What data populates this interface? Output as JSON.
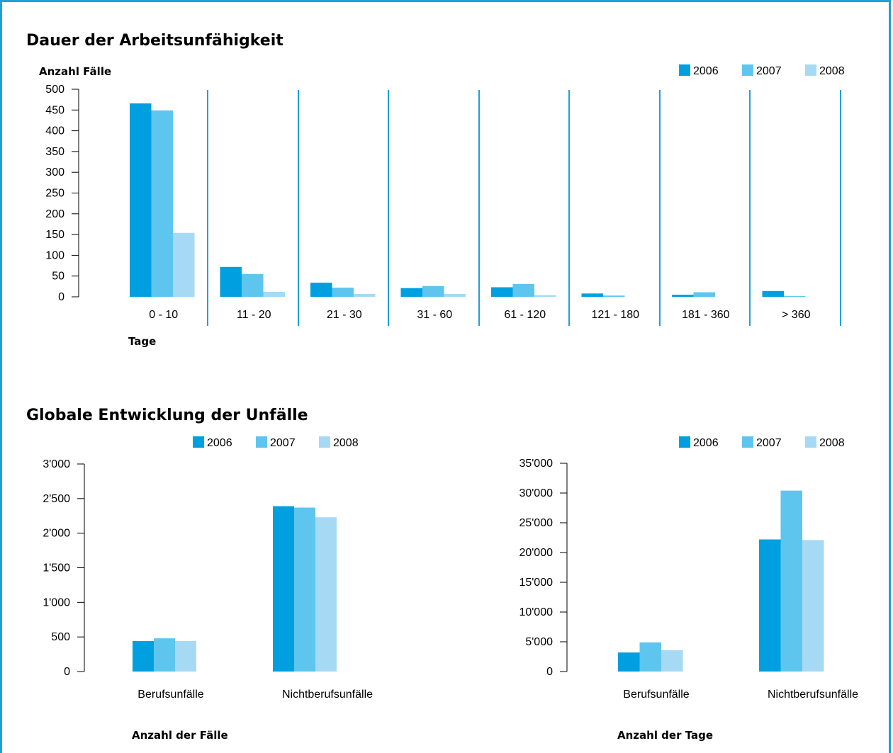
{
  "colors": {
    "frame": "#1ea1d9",
    "s2006": "#009fe0",
    "s2007": "#5ec6ee",
    "s2008": "#a6daf4",
    "separator": "#1ea1d9",
    "axis": "#000000"
  },
  "sections": {
    "duration_title": "Dauer der Arbeitsunfähigkeit",
    "global_title": "Globale Entwicklung der Unfälle"
  },
  "chart_data": [
    {
      "type": "bar",
      "ylabel": "Anzahl Fälle",
      "xlabel": "Tage",
      "categories": [
        "0 - 10",
        "11 - 20",
        "21 - 30",
        "31 - 60",
        "61 - 120",
        "121 - 180",
        "181 - 360",
        "> 360"
      ],
      "series": [
        {
          "name": "2006",
          "values": [
            466,
            72,
            34,
            21,
            23,
            8,
            5,
            14
          ]
        },
        {
          "name": "2007",
          "values": [
            449,
            55,
            22,
            26,
            31,
            3,
            11,
            2
          ]
        },
        {
          "name": "2008",
          "values": [
            154,
            12,
            7,
            7,
            4,
            0,
            0,
            0
          ]
        }
      ],
      "ylim": [
        0,
        500
      ],
      "yticks": [
        "0",
        "50",
        "100",
        "150",
        "200",
        "250",
        "300",
        "350",
        "400",
        "450",
        "500"
      ],
      "legend": "top-right",
      "grid": false
    },
    {
      "type": "bar",
      "xlabel": "Anzahl der Fälle",
      "categories": [
        "Berufsunfälle",
        "Nichtberufsunfälle"
      ],
      "series": [
        {
          "name": "2006",
          "values": [
            440,
            2390
          ]
        },
        {
          "name": "2007",
          "values": [
            480,
            2370
          ]
        },
        {
          "name": "2008",
          "values": [
            440,
            2230
          ]
        }
      ],
      "ylim": [
        0,
        3000
      ],
      "yticks": [
        "0",
        "500",
        "1'000",
        "1'500",
        "2'000",
        "2'500",
        "3'000"
      ],
      "legend": "top-right",
      "grid": false
    },
    {
      "type": "bar",
      "xlabel": "Anzahl der Tage",
      "categories": [
        "Berufsunfälle",
        "Nichtberufsunfälle"
      ],
      "series": [
        {
          "name": "2006",
          "values": [
            3200,
            22200
          ]
        },
        {
          "name": "2007",
          "values": [
            4900,
            30400
          ]
        },
        {
          "name": "2008",
          "values": [
            3600,
            22100
          ]
        }
      ],
      "ylim": [
        0,
        35000
      ],
      "yticks": [
        "0",
        "5'000",
        "10'000",
        "15'000",
        "20'000",
        "25'000",
        "30'000",
        "35'000"
      ],
      "legend": "top-right",
      "grid": false
    }
  ]
}
